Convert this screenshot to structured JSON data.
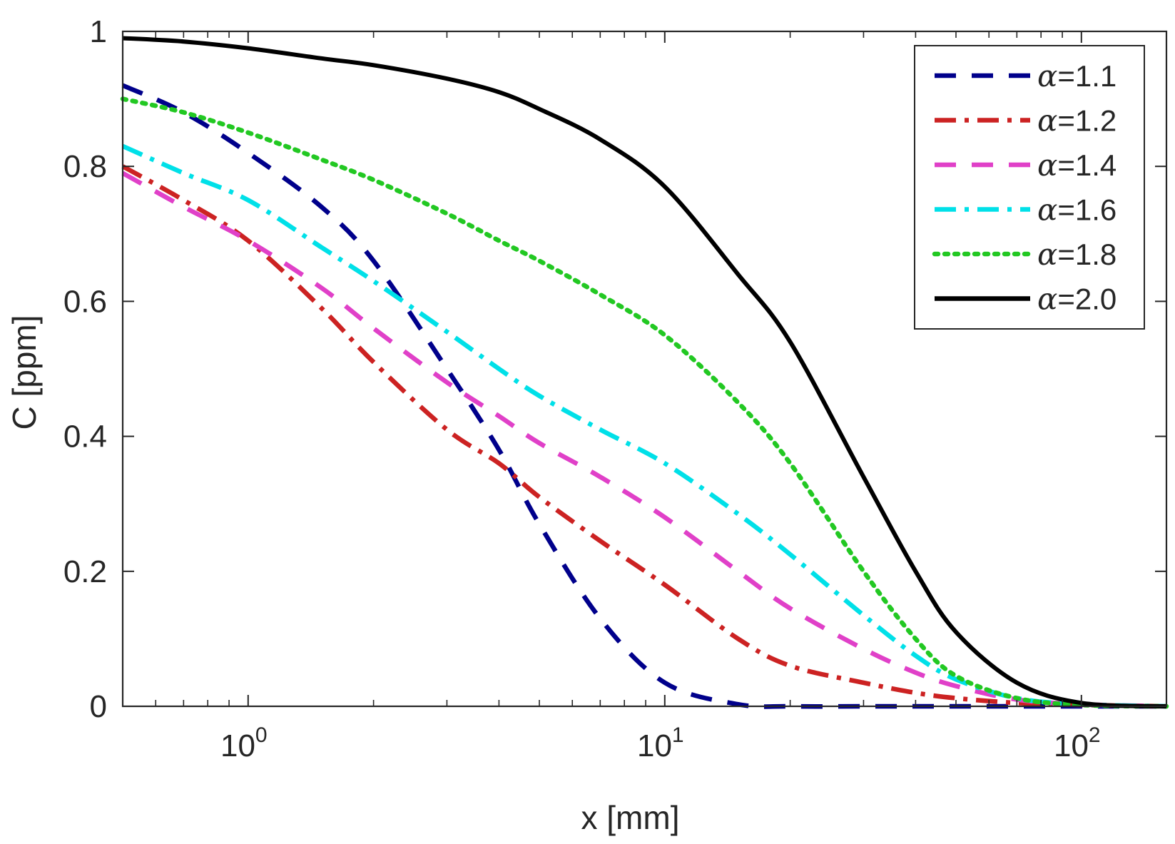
{
  "chart_data": {
    "type": "line",
    "title": "",
    "xlabel": "x [mm]",
    "ylabel": "C [ppm]",
    "xscale": "log",
    "xlim": [
      0.5,
      160
    ],
    "ylim": [
      0,
      1
    ],
    "grid": false,
    "legend_position": "top-right",
    "x_ticks": [
      {
        "value": 1,
        "base": "10",
        "exp": "0"
      },
      {
        "value": 10,
        "base": "10",
        "exp": "1"
      },
      {
        "value": 100,
        "base": "10",
        "exp": "2"
      }
    ],
    "y_ticks": [
      {
        "value": 0,
        "label": "0"
      },
      {
        "value": 0.2,
        "label": "0.2"
      },
      {
        "value": 0.4,
        "label": "0.4"
      },
      {
        "value": 0.6,
        "label": "0.6"
      },
      {
        "value": 0.8,
        "label": "0.8"
      },
      {
        "value": 1,
        "label": "1"
      }
    ],
    "x": [
      0.5,
      0.7,
      1,
      1.5,
      2,
      3,
      4,
      5,
      7,
      10,
      15,
      20,
      30,
      40,
      50,
      70,
      100,
      160
    ],
    "series": [
      {
        "name": "α=1.1",
        "legend_symbol": "α",
        "legend_value": "=1.1",
        "color": "#00008b",
        "dash": "dashed",
        "values": [
          0.92,
          0.88,
          0.82,
          0.74,
          0.66,
          0.5,
          0.38,
          0.27,
          0.13,
          0.035,
          0.003,
          0,
          0,
          0,
          0,
          0,
          0,
          0
        ]
      },
      {
        "name": "α=1.2",
        "legend_symbol": "α",
        "legend_value": "=1.2",
        "color": "#cc2222",
        "dash": "dashdot",
        "values": [
          0.8,
          0.75,
          0.69,
          0.59,
          0.51,
          0.41,
          0.36,
          0.31,
          0.245,
          0.18,
          0.1,
          0.06,
          0.035,
          0.02,
          0.012,
          0.005,
          0.002,
          0
        ]
      },
      {
        "name": "α=1.4",
        "legend_symbol": "α",
        "legend_value": "=1.4",
        "color": "#e040c8",
        "dash": "dashed",
        "values": [
          0.79,
          0.74,
          0.69,
          0.62,
          0.56,
          0.48,
          0.43,
          0.39,
          0.34,
          0.28,
          0.2,
          0.145,
          0.085,
          0.05,
          0.03,
          0.01,
          0.003,
          0
        ]
      },
      {
        "name": "α=1.6",
        "legend_symbol": "α",
        "legend_value": "=1.6",
        "color": "#00e0e8",
        "dash": "dashdot",
        "values": [
          0.83,
          0.79,
          0.75,
          0.68,
          0.63,
          0.555,
          0.5,
          0.46,
          0.41,
          0.36,
          0.285,
          0.225,
          0.135,
          0.075,
          0.04,
          0.012,
          0.003,
          0
        ]
      },
      {
        "name": "α=1.8",
        "legend_symbol": "α",
        "legend_value": "=1.8",
        "color": "#22c822",
        "dash": "dotted",
        "values": [
          0.9,
          0.88,
          0.85,
          0.81,
          0.78,
          0.73,
          0.69,
          0.66,
          0.61,
          0.55,
          0.45,
          0.36,
          0.2,
          0.1,
          0.045,
          0.012,
          0.002,
          0
        ]
      },
      {
        "name": "α=2.0",
        "legend_symbol": "α",
        "legend_value": "=2.0",
        "color": "#000000",
        "dash": "solid",
        "values": [
          0.99,
          0.985,
          0.975,
          0.96,
          0.95,
          0.93,
          0.91,
          0.885,
          0.84,
          0.77,
          0.64,
          0.54,
          0.34,
          0.2,
          0.11,
          0.035,
          0.005,
          0
        ]
      }
    ]
  }
}
